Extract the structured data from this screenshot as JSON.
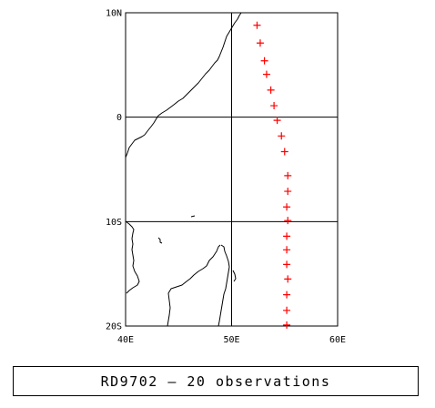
{
  "map": {
    "lon_range": [
      40,
      60
    ],
    "lat_range": [
      -20,
      10
    ],
    "grid_lons": [
      50
    ],
    "grid_lats": [
      0,
      -10
    ],
    "lat_labels": [
      {
        "value": 10,
        "text": "10N"
      },
      {
        "value": 0,
        "text": "0"
      },
      {
        "value": -10,
        "text": "10S"
      },
      {
        "value": -20,
        "text": "20S"
      }
    ],
    "lon_labels": [
      {
        "value": 40,
        "text": "40E"
      },
      {
        "value": 50,
        "text": "50E"
      },
      {
        "value": 60,
        "text": "60E"
      }
    ],
    "coastline_color": "#000000",
    "marker_color": "#ff0000",
    "marker_symbol": "plus",
    "observations": [
      {
        "lon": 52.4,
        "lat": 8.8
      },
      {
        "lon": 52.7,
        "lat": 7.1
      },
      {
        "lon": 53.1,
        "lat": 5.4
      },
      {
        "lon": 53.3,
        "lat": 4.1
      },
      {
        "lon": 53.7,
        "lat": 2.6
      },
      {
        "lon": 54.0,
        "lat": 1.1
      },
      {
        "lon": 54.3,
        "lat": -0.3
      },
      {
        "lon": 54.7,
        "lat": -1.8
      },
      {
        "lon": 55.0,
        "lat": -3.3
      },
      {
        "lon": 55.3,
        "lat": -5.6
      },
      {
        "lon": 55.3,
        "lat": -7.1
      },
      {
        "lon": 55.2,
        "lat": -8.6
      },
      {
        "lon": 55.3,
        "lat": -9.9
      },
      {
        "lon": 55.2,
        "lat": -11.4
      },
      {
        "lon": 55.2,
        "lat": -12.7
      },
      {
        "lon": 55.2,
        "lat": -14.1
      },
      {
        "lon": 55.3,
        "lat": -15.5
      },
      {
        "lon": 55.2,
        "lat": -17.0
      },
      {
        "lon": 55.2,
        "lat": -18.5
      },
      {
        "lon": 55.2,
        "lat": -19.9
      }
    ]
  },
  "caption": {
    "text": "RD9702 – 20 observations"
  }
}
